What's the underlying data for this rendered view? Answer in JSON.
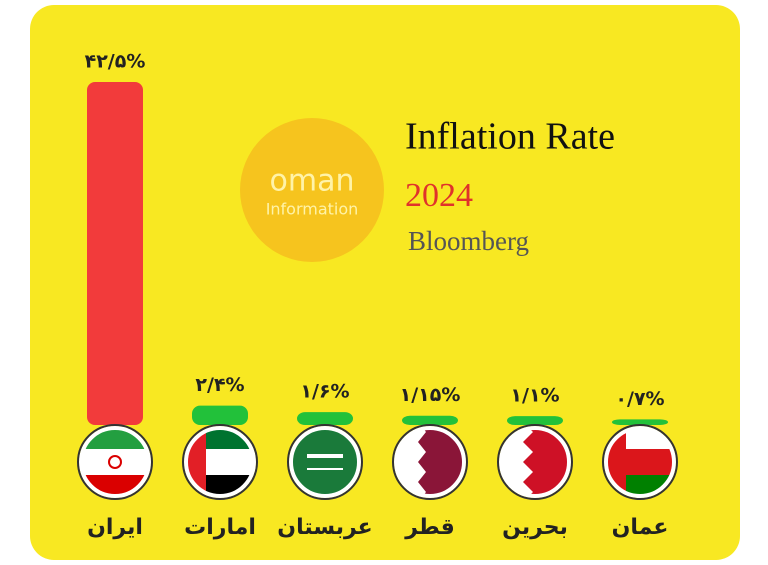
{
  "chart_data": {
    "type": "bar",
    "title": "Inflation Rate",
    "subtitle": "2024",
    "source": "Bloomberg",
    "watermark": [
      "oman",
      "Information"
    ],
    "categories": [
      "ایران",
      "امارات",
      "عربستان",
      "قطر",
      "بحرین",
      "عمان"
    ],
    "values": [
      42.5,
      2.4,
      1.6,
      1.15,
      1.1,
      0.7
    ],
    "value_labels": [
      "۴۲/۵%",
      "۲/۴%",
      "۱/۶%",
      "۱/۱۵%",
      "۱/۱%",
      "۰/۷%"
    ],
    "colors": [
      "#f23b3b",
      "#22c13a",
      "#22c13a",
      "#22c13a",
      "#22c13a",
      "#22c13a"
    ]
  }
}
